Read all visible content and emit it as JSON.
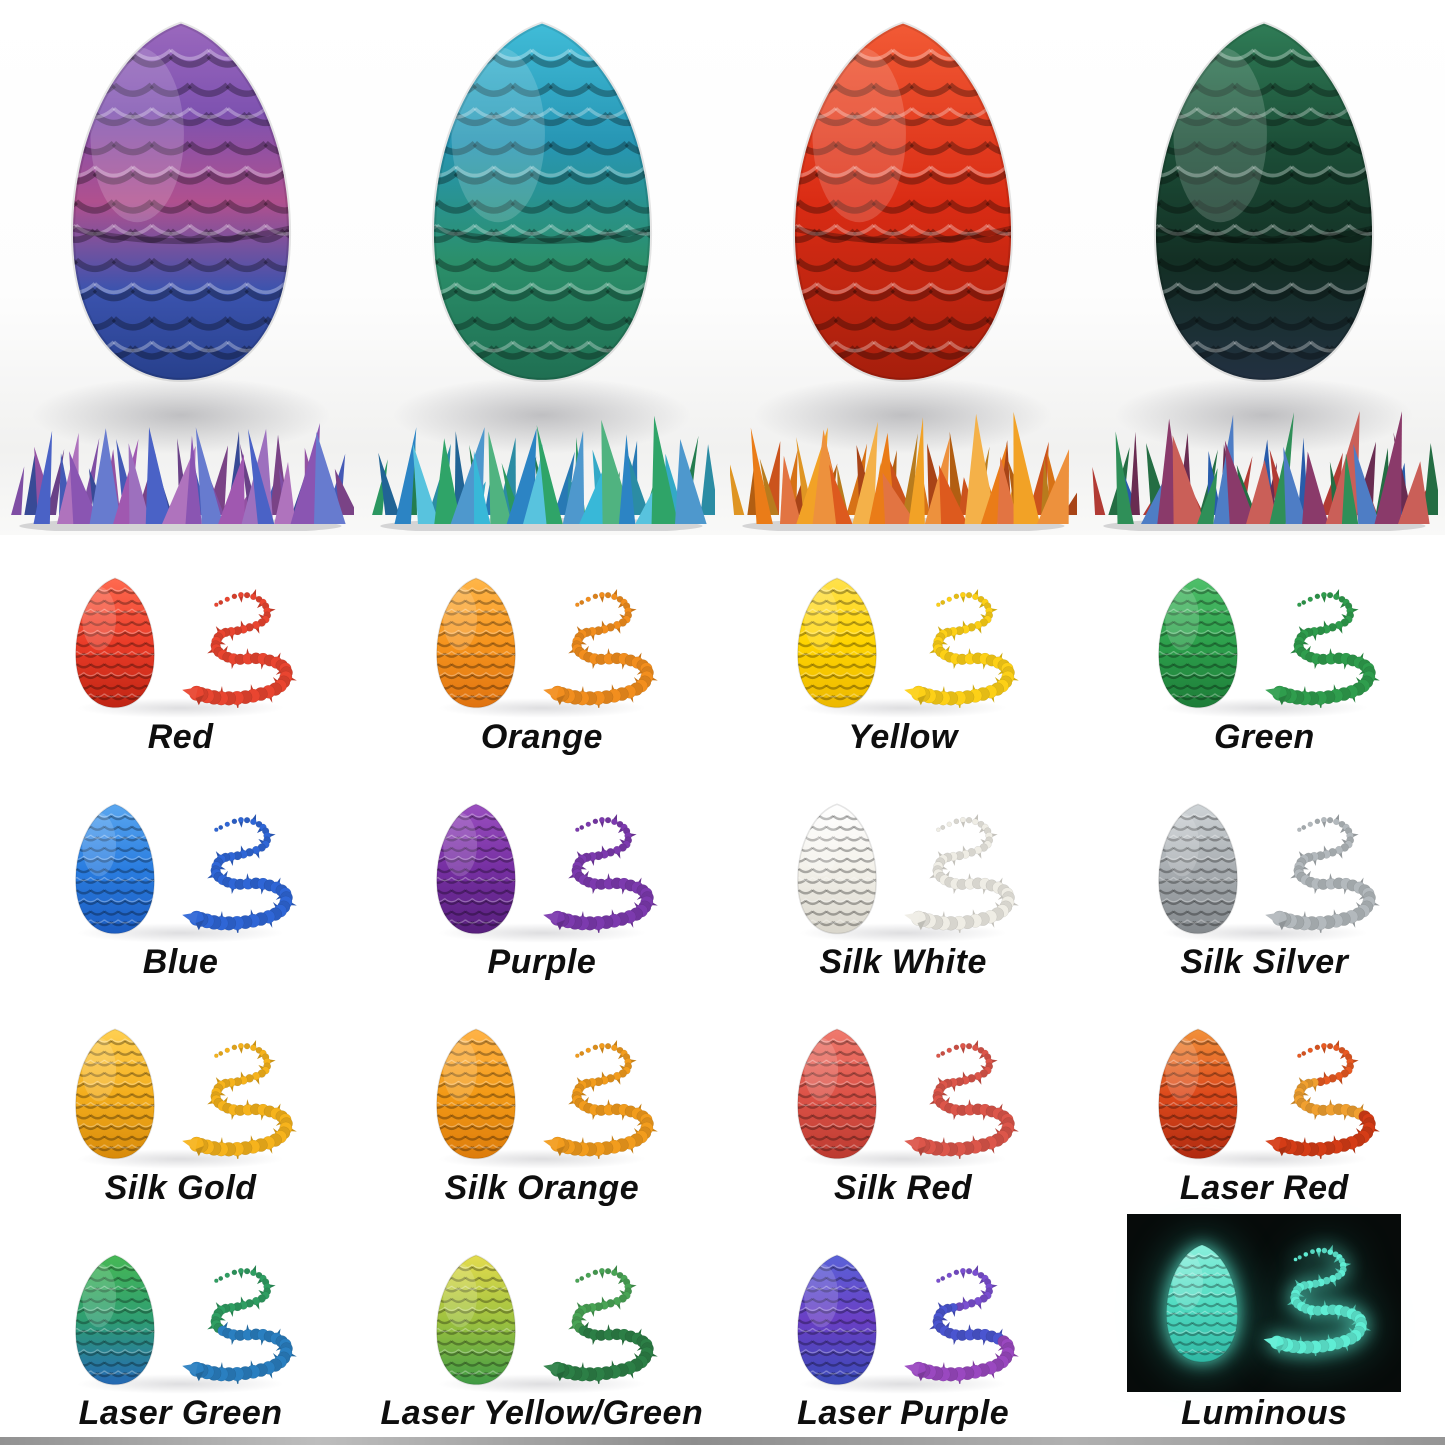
{
  "colors": {
    "background": "#ffffff",
    "label_text": "#0e0e0e",
    "luminous_photo_bg": "#070b0a",
    "bottom_strip": "#9b9b9b"
  },
  "hero": {
    "items": [
      {
        "name": "laser-purple-blue-egg-with-crystal-dragon",
        "egg": [
          "#9a68bd",
          "#7e52b0",
          "#b0508e",
          "#3b53ae",
          "#27408c"
        ],
        "dragon": [
          "#8a55b2",
          "#4a62c6",
          "#a058b0"
        ]
      },
      {
        "name": "teal-blue-green-egg-with-crystal-dragon",
        "egg": [
          "#40bcd8",
          "#2796b4",
          "#2b8f6a",
          "#1f6f52"
        ],
        "dragon": [
          "#2fa468",
          "#2c84c4",
          "#38b8d8"
        ]
      },
      {
        "name": "red-egg-with-orange-gold-crystal-dragon",
        "egg": [
          "#f25a35",
          "#da2c14",
          "#a51e0c"
        ],
        "dragon": [
          "#f2a226",
          "#ea7c18",
          "#dd5a1e"
        ]
      },
      {
        "name": "dark-green-egg-with-rainbow-crystal-dragon",
        "egg": [
          "#2f7c56",
          "#1c4f38",
          "#132f24",
          "#223041"
        ],
        "dragon": [
          "#c04038",
          "#2f8f58",
          "#2c64ba",
          "#8a3a6a"
        ]
      }
    ]
  },
  "variants": [
    {
      "label": "Red",
      "egg": [
        "#ff6a50",
        "#ea3c28",
        "#bf2413"
      ],
      "dragon": "#e94530"
    },
    {
      "label": "Orange",
      "egg": [
        "#ffb649",
        "#f6941d",
        "#e07310"
      ],
      "dragon": "#f28e1e"
    },
    {
      "label": "Yellow",
      "egg": [
        "#ffe14d",
        "#ffd400",
        "#edb800"
      ],
      "dragon": "#fdd017"
    },
    {
      "label": "Green",
      "egg": [
        "#4fc06a",
        "#2da04c",
        "#1d7c38"
      ],
      "dragon": "#2f9d4d"
    },
    {
      "label": "Blue",
      "egg": [
        "#5aa7f0",
        "#2a7de0",
        "#1c5cc0"
      ],
      "dragon": "#2f66d6"
    },
    {
      "label": "Purple",
      "egg": [
        "#9a4fc0",
        "#762fa2",
        "#571f7c"
      ],
      "dragon": "#7c3aae"
    },
    {
      "label": "Silk White",
      "egg": [
        "#ffffff",
        "#f3f1ea",
        "#d9d6cc"
      ],
      "dragon": "#efede5"
    },
    {
      "label": "Silk Silver",
      "egg": [
        "#cfd4d7",
        "#a9aeb2",
        "#83888c"
      ],
      "dragon": "#b3b9bd"
    },
    {
      "label": "Silk Gold",
      "egg": [
        "#ffd052",
        "#f4ae1d",
        "#d88a0a"
      ],
      "dragon": "#f6b31c"
    },
    {
      "label": "Silk Orange",
      "egg": [
        "#ffb347",
        "#f39a16",
        "#dd7c0b"
      ],
      "dragon": "#f29c1d"
    },
    {
      "label": "Silk Red",
      "egg": [
        "#f07a6e",
        "#dd5348",
        "#bc3a30"
      ],
      "dragon": "#dc564a"
    },
    {
      "label": "Laser Red",
      "egg": [
        "#f2913a",
        "#dd4a1c",
        "#b02a10"
      ],
      "dragon": [
        "#e85a22",
        "#f0a030",
        "#d43c16"
      ]
    },
    {
      "label": "Laser Green",
      "egg": [
        "#46b855",
        "#2f9e72",
        "#2468b4"
      ],
      "dragon": [
        "#2f9e62",
        "#2a7fc0"
      ]
    },
    {
      "label": "Laser Yellow/Green",
      "egg": [
        "#e4dc4e",
        "#9fc23f",
        "#3f9a44"
      ],
      "dragon": [
        "#49a455",
        "#2c7f46"
      ]
    },
    {
      "label": "Laser Purple",
      "egg": [
        "#5a62d8",
        "#6a3fc4",
        "#3a4ab8"
      ],
      "dragon": [
        "#7a4fd0",
        "#4a55d0",
        "#9a48c0"
      ]
    },
    {
      "label": "Luminous",
      "egg": [
        "#8af0dc",
        "#52dcc2",
        "#2fb8a4"
      ],
      "dragon": "#5fedd4",
      "dark": true
    }
  ]
}
